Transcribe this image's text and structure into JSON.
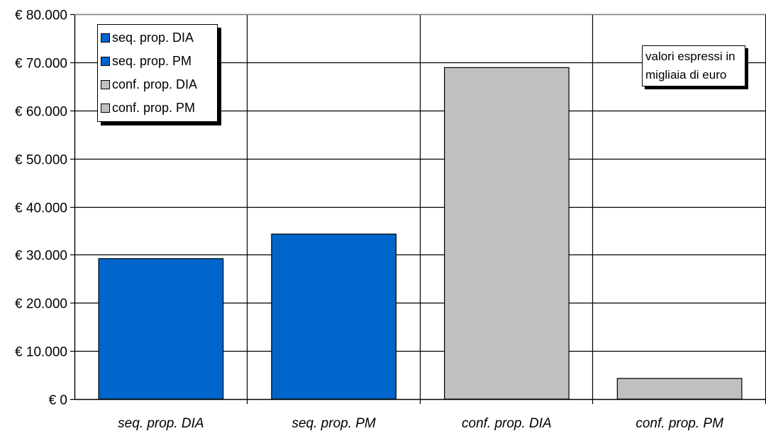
{
  "chart_data": {
    "type": "bar",
    "categories": [
      "seq. prop. DIA",
      "seq. prop. PM",
      "conf. prop. DIA",
      "conf. prop. PM"
    ],
    "values": [
      29200,
      34300,
      68900,
      4300
    ],
    "bar_colors": [
      "#0066CC",
      "#0066CC",
      "#C0C0C0",
      "#C0C0C0"
    ],
    "ylim": [
      0,
      80000
    ],
    "yticks": [
      0,
      10000,
      20000,
      30000,
      40000,
      50000,
      60000,
      70000,
      80000
    ],
    "ytick_labels": [
      "€ 0",
      "€ 10.000",
      "€ 20.000",
      "€ 30.000",
      "€ 40.000",
      "€ 50.000",
      "€ 60.000",
      "€ 70.000",
      "€ 80.000"
    ],
    "grid": true,
    "title": "",
    "xlabel": "",
    "ylabel": "",
    "legend_position": "top-left",
    "legend": [
      {
        "label": "seq. prop. DIA",
        "color": "#0066CC"
      },
      {
        "label": "seq. prop. PM",
        "color": "#0066CC"
      },
      {
        "label": "conf. prop. DIA",
        "color": "#C0C0C0"
      },
      {
        "label": "conf. prop. PM",
        "color": "#C0C0C0"
      }
    ],
    "annotation": {
      "line1": "valori espressi in",
      "line2": "migliaia di euro"
    }
  }
}
